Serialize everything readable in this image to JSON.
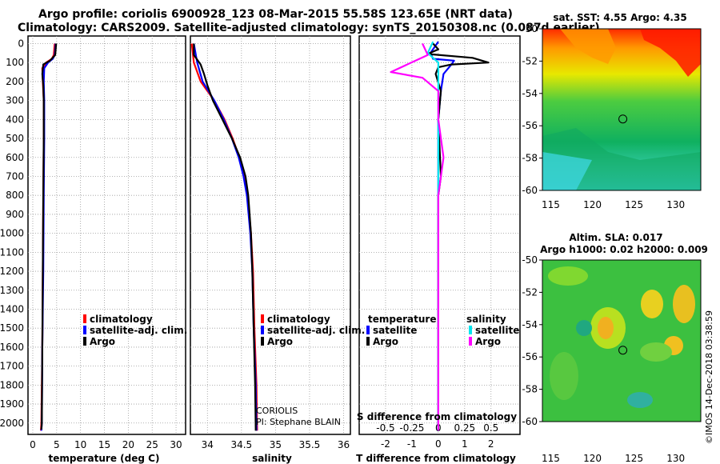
{
  "header": {
    "line1": "Argo profile: coriolis 6900928_123 08-Mar-2015 55.58S 123.65E (NRT data)",
    "line2": "Climatology: CARS2009. Satellite-adjusted climatology: synTS_20150308.nc (0.087d earlier)"
  },
  "colors": {
    "climatology": "#ff0000",
    "satellite": "#0000ff",
    "argo": "#000000",
    "satellite_s": "#00e5ee",
    "argo_s": "#ff00ff",
    "grid": "#9a9a9a"
  },
  "depth_ticks": [
    "0",
    "100",
    "200",
    "300",
    "400",
    "500",
    "600",
    "700",
    "800",
    "900",
    "1000",
    "1100",
    "1200",
    "1300",
    "1400",
    "1500",
    "1600",
    "1700",
    "1800",
    "1900",
    "2000"
  ],
  "chart_data": [
    {
      "type": "line",
      "id": "temperature",
      "xlabel": "temperature (deg C)",
      "ylabel": "depth",
      "xlim": [
        -1,
        32
      ],
      "ylim": [
        2060,
        -40
      ],
      "xticks": [
        "0",
        "5",
        "10",
        "15",
        "20",
        "25",
        "30"
      ],
      "legend": {
        "position": "bottom-center",
        "entries": [
          "climatology",
          "satellite-adj. clim.",
          "Argo"
        ]
      },
      "series": [
        {
          "name": "climatology",
          "color_key": "climatology",
          "points": [
            [
              4.6,
              0
            ],
            [
              4.5,
              30
            ],
            [
              4.4,
              60
            ],
            [
              4.0,
              80
            ],
            [
              2.8,
              100
            ],
            [
              2.0,
              130
            ],
            [
              2.1,
              200
            ],
            [
              2.3,
              300
            ],
            [
              2.3,
              500
            ],
            [
              2.2,
              800
            ],
            [
              2.1,
              1200
            ],
            [
              2.0,
              1600
            ],
            [
              1.8,
              2000
            ],
            [
              1.7,
              2040
            ]
          ]
        },
        {
          "name": "satellite-adj. clim.",
          "color_key": "satellite",
          "points": [
            [
              4.8,
              0
            ],
            [
              4.7,
              30
            ],
            [
              4.6,
              60
            ],
            [
              4.2,
              80
            ],
            [
              3.2,
              100
            ],
            [
              2.4,
              130
            ],
            [
              2.3,
              200
            ],
            [
              2.4,
              300
            ],
            [
              2.4,
              500
            ],
            [
              2.3,
              800
            ],
            [
              2.2,
              1200
            ],
            [
              2.0,
              1600
            ],
            [
              1.9,
              2000
            ],
            [
              1.8,
              2040
            ]
          ]
        },
        {
          "name": "Argo",
          "color_key": "argo",
          "points": [
            [
              4.9,
              0
            ],
            [
              4.8,
              30
            ],
            [
              4.7,
              60
            ],
            [
              3.6,
              90
            ],
            [
              2.2,
              110
            ],
            [
              2.0,
              160
            ],
            [
              2.2,
              220
            ],
            [
              2.3,
              300
            ],
            [
              2.3,
              500
            ],
            [
              2.2,
              800
            ],
            [
              2.1,
              1200
            ],
            [
              2.0,
              1600
            ],
            [
              1.9,
              2000
            ],
            [
              1.8,
              2035
            ]
          ]
        }
      ]
    },
    {
      "type": "line",
      "id": "salinity",
      "xlabel": "salinity",
      "ylabel": "depth",
      "xlim": [
        33.75,
        36.1
      ],
      "ylim": [
        2060,
        -40
      ],
      "xticks": [
        "34",
        "34.5",
        "35",
        "35.5",
        "36"
      ],
      "legend": {
        "position": "bottom-center",
        "entries": [
          "climatology",
          "satellite-adj. clim.",
          "Argo"
        ]
      },
      "annotations": [
        "CORIOLIS",
        "PI: Stephane BLAIN"
      ],
      "series": [
        {
          "name": "climatology",
          "color_key": "climatology",
          "points": [
            [
              33.77,
              0
            ],
            [
              33.8,
              100
            ],
            [
              33.9,
              200
            ],
            [
              34.1,
              300
            ],
            [
              34.25,
              400
            ],
            [
              34.37,
              500
            ],
            [
              34.47,
              600
            ],
            [
              34.54,
              700
            ],
            [
              34.59,
              800
            ],
            [
              34.64,
              1000
            ],
            [
              34.67,
              1200
            ],
            [
              34.69,
              1500
            ],
            [
              34.72,
              1800
            ],
            [
              34.73,
              2040
            ]
          ]
        },
        {
          "name": "satellite-adj. clim.",
          "color_key": "satellite",
          "points": [
            [
              33.8,
              0
            ],
            [
              33.85,
              100
            ],
            [
              33.93,
              200
            ],
            [
              34.1,
              300
            ],
            [
              34.24,
              400
            ],
            [
              34.36,
              500
            ],
            [
              34.46,
              600
            ],
            [
              34.53,
              700
            ],
            [
              34.58,
              800
            ],
            [
              34.63,
              1000
            ],
            [
              34.66,
              1200
            ],
            [
              34.68,
              1500
            ],
            [
              34.71,
              1800
            ],
            [
              34.72,
              2040
            ]
          ]
        },
        {
          "name": "Argo",
          "color_key": "argo",
          "points": [
            [
              33.8,
              0
            ],
            [
              33.8,
              60
            ],
            [
              33.9,
              110
            ],
            [
              33.95,
              160
            ],
            [
              34.0,
              220
            ],
            [
              34.08,
              300
            ],
            [
              34.22,
              400
            ],
            [
              34.36,
              500
            ],
            [
              34.48,
              600
            ],
            [
              34.56,
              700
            ],
            [
              34.6,
              800
            ],
            [
              34.64,
              1000
            ],
            [
              34.66,
              1200
            ],
            [
              34.68,
              1500
            ],
            [
              34.7,
              1800
            ],
            [
              34.71,
              2040
            ]
          ]
        }
      ]
    },
    {
      "type": "line",
      "id": "difference",
      "xlabel": "T difference from climatology",
      "xlabel2": "S difference from climatology",
      "xlim": [
        -3,
        3.1
      ],
      "ylim": [
        2060,
        -40
      ],
      "xticks": [
        "-2",
        "-1",
        "0",
        "1",
        "2"
      ],
      "xticks_s": [
        "-0.5",
        "-0.25",
        "0",
        "0.25",
        "0.5"
      ],
      "legend": {
        "position": "bottom",
        "temperature_title": "temperature",
        "salinity_title": "salinity",
        "entries": [
          "satellite",
          "Argo",
          "satellite",
          "Argo"
        ]
      },
      "series": [
        {
          "name": "T satellite",
          "color_key": "satellite",
          "points": [
            [
              0,
              -10
            ],
            [
              -0.3,
              50
            ],
            [
              -0.2,
              80
            ],
            [
              0.6,
              90
            ],
            [
              0.5,
              110
            ],
            [
              0.2,
              160
            ],
            [
              0.1,
              250
            ],
            [
              0,
              400
            ],
            [
              0,
              1000
            ],
            [
              0,
              2040
            ]
          ]
        },
        {
          "name": "T Argo",
          "color_key": "argo",
          "points": [
            [
              -0.2,
              0
            ],
            [
              0,
              30
            ],
            [
              -0.4,
              55
            ],
            [
              1.3,
              75
            ],
            [
              1.9,
              100
            ],
            [
              0.5,
              110
            ],
            [
              0,
              125
            ],
            [
              -0.1,
              160
            ],
            [
              0.1,
              250
            ],
            [
              0,
              400
            ],
            [
              0.1,
              700
            ],
            [
              0,
              800
            ],
            [
              0,
              2040
            ]
          ]
        },
        {
          "name": "S satellite",
          "color_key": "satellite_s",
          "points": [
            [
              -0.05,
              -10
            ],
            [
              -0.1,
              50
            ],
            [
              0,
              100
            ],
            [
              0,
              160
            ],
            [
              0,
              300
            ],
            [
              0,
              600
            ],
            [
              0,
              1000
            ],
            [
              0,
              2040
            ]
          ]
        },
        {
          "name": "S Argo",
          "color_key": "argo_s",
          "points": [
            [
              -0.15,
              0
            ],
            [
              -0.1,
              60
            ],
            [
              -0.45,
              150
            ],
            [
              -0.15,
              180
            ],
            [
              0,
              250
            ],
            [
              0,
              400
            ],
            [
              0.05,
              600
            ],
            [
              0,
              800
            ],
            [
              0,
              2040
            ]
          ]
        }
      ]
    }
  ],
  "maps": [
    {
      "id": "sst-map",
      "title": "sat. SST: 4.55 Argo: 4.35",
      "xticks": [
        "115",
        "120",
        "125",
        "130"
      ],
      "yticks": [
        "-50",
        "-52",
        "-54",
        "-56",
        "-58",
        "-60"
      ],
      "lon_range": [
        114,
        133
      ],
      "lat_range": [
        -60,
        -50
      ],
      "marker": {
        "lon": 123.65,
        "lat": -55.58
      }
    },
    {
      "id": "sla-map",
      "title": "Altim. SLA: 0.017",
      "title2": "Argo h1000: 0.02 h2000: 0.009",
      "xticks": [
        "115",
        "120",
        "125",
        "130"
      ],
      "yticks": [
        "-50",
        "-52",
        "-54",
        "-56",
        "-58",
        "-60"
      ],
      "lon_range": [
        114,
        133
      ],
      "lat_range": [
        -60,
        -50
      ],
      "marker": {
        "lon": 123.65,
        "lat": -55.58
      }
    }
  ],
  "credit": "©IMOS 14-Dec-2018 03:38:59"
}
